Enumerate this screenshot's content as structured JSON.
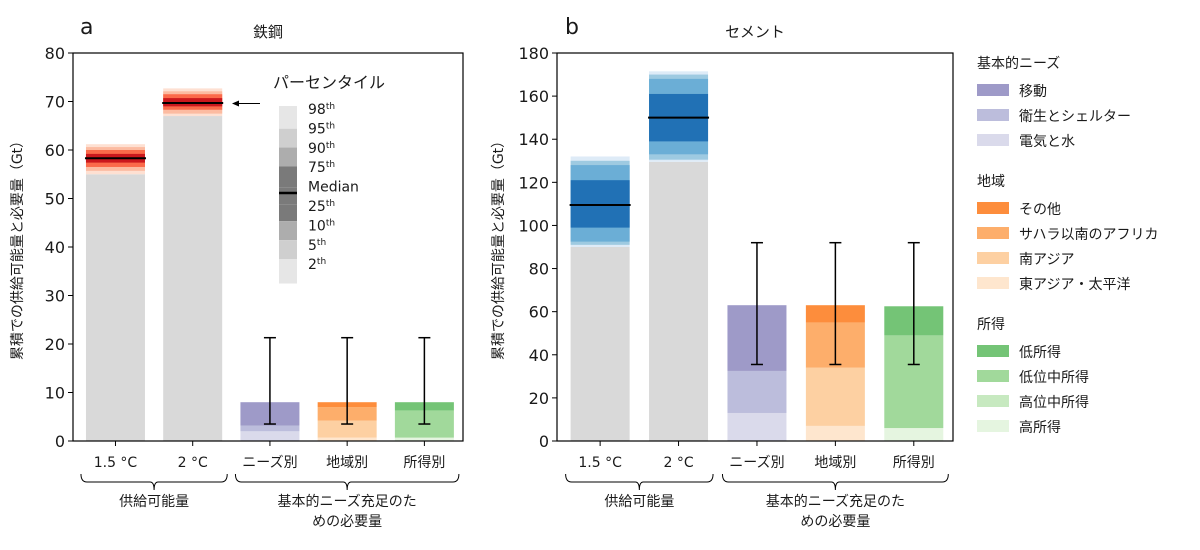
{
  "chart_data": [
    {
      "type": "bar",
      "panel_label": "a",
      "title": "鉄鋼",
      "ylabel": "累積での供給可能量と必要量（Gt）",
      "ylim": [
        0,
        80
      ],
      "yticks": [
        0,
        10,
        20,
        30,
        40,
        50,
        60,
        70,
        80
      ],
      "categories": [
        "1.5 °C",
        "2 °C",
        "ニーズ別",
        "地域別",
        "所得別"
      ],
      "group_labels": [
        {
          "label": "供給可能量",
          "categories": [
            "1.5 °C",
            "2 °C"
          ]
        },
        {
          "label": "基本的ニーズ充足のための必要量",
          "label_lines": [
            "基本的ニーズ充足のた",
            "めの必要量"
          ],
          "categories": [
            "ニーズ別",
            "地域別",
            "所得別"
          ]
        }
      ],
      "supply": [
        {
          "category": "1.5 °C",
          "percentiles": {
            "p2": 55.0,
            "p5": 55.7,
            "p10": 56.5,
            "p25": 57.4,
            "median": 58.3,
            "p75": 59.2,
            "p90": 60.0,
            "p95": 60.6,
            "p98": 61.2
          }
        },
        {
          "category": "2 °C",
          "percentiles": {
            "p2": 67.0,
            "p5": 67.5,
            "p10": 68.3,
            "p25": 69.0,
            "median": 69.7,
            "p75": 70.7,
            "p90": 71.5,
            "p95": 72.1,
            "p98": 72.7
          }
        }
      ],
      "demand": [
        {
          "category": "ニーズ別",
          "stack": [
            {
              "name": "電気と水",
              "value": 2.0
            },
            {
              "name": "衛生とシェルター",
              "value": 1.2
            },
            {
              "name": "移動",
              "value": 4.8
            }
          ],
          "error": [
            3.5,
            21.3
          ]
        },
        {
          "category": "地域別",
          "stack": [
            {
              "name": "東アジア・太平洋",
              "value": 0.7
            },
            {
              "name": "南アジア",
              "value": 3.5
            },
            {
              "name": "サハラ以南のアフリカ",
              "value": 2.8
            },
            {
              "name": "その他",
              "value": 1.0
            }
          ],
          "error": [
            3.5,
            21.3
          ]
        },
        {
          "category": "所得別",
          "stack": [
            {
              "name": "高所得",
              "value": 0.7
            },
            {
              "name": "高位中所得",
              "value": 0.0
            },
            {
              "name": "低位中所得",
              "value": 5.6
            },
            {
              "name": "低所得",
              "value": 1.7
            }
          ],
          "error": [
            3.5,
            21.3
          ]
        }
      ],
      "percentile_legend": {
        "title": "パーセンタイル",
        "entries": [
          {
            "label": "98",
            "sup": "th"
          },
          {
            "label": "95",
            "sup": "th"
          },
          {
            "label": "90",
            "sup": "th"
          },
          {
            "label": "75",
            "sup": "th"
          },
          {
            "label": "Median",
            "sup": ""
          },
          {
            "label": "25",
            "sup": "th"
          },
          {
            "label": "10",
            "sup": "th"
          },
          {
            "label": "5",
            "sup": "th"
          },
          {
            "label": "2",
            "sup": "th"
          }
        ]
      }
    },
    {
      "type": "bar",
      "panel_label": "b",
      "title": "セメント",
      "ylabel": "累積での供給可能量と必要量（Gt）",
      "ylim": [
        0,
        180
      ],
      "yticks": [
        0,
        20,
        40,
        60,
        80,
        100,
        120,
        140,
        160,
        180
      ],
      "categories": [
        "1.5 °C",
        "2 °C",
        "ニーズ別",
        "地域別",
        "所得別"
      ],
      "group_labels": [
        {
          "label": "供給可能量",
          "categories": [
            "1.5 °C",
            "2 °C"
          ]
        },
        {
          "label": "基本的ニーズ充足のための必要量",
          "label_lines": [
            "基本的ニーズ充足のた",
            "めの必要量"
          ],
          "categories": [
            "ニーズ別",
            "地域別",
            "所得別"
          ]
        }
      ],
      "supply": [
        {
          "category": "1.5 °C",
          "percentiles": {
            "p2": 90.0,
            "p5": 91.0,
            "p10": 92.5,
            "p25": 99.0,
            "median": 109.5,
            "p75": 121.0,
            "p90": 128.0,
            "p95": 130.0,
            "p98": 132.0
          }
        },
        {
          "category": "2 °C",
          "percentiles": {
            "p2": 129.5,
            "p5": 130.5,
            "p10": 133.0,
            "p25": 139.0,
            "median": 150.0,
            "p75": 161.0,
            "p90": 168.0,
            "p95": 170.0,
            "p98": 171.5
          }
        }
      ],
      "demand": [
        {
          "category": "ニーズ別",
          "stack": [
            {
              "name": "電気と水",
              "value": 13.0
            },
            {
              "name": "衛生とシェルター",
              "value": 19.5
            },
            {
              "name": "移動",
              "value": 30.5
            }
          ],
          "error": [
            35.5,
            92.0
          ]
        },
        {
          "category": "地域別",
          "stack": [
            {
              "name": "東アジア・太平洋",
              "value": 7.0
            },
            {
              "name": "南アジア",
              "value": 27.0
            },
            {
              "name": "サハラ以南のアフリカ",
              "value": 21.0
            },
            {
              "name": "その他",
              "value": 8.0
            }
          ],
          "error": [
            35.5,
            92.0
          ]
        },
        {
          "category": "所得別",
          "stack": [
            {
              "name": "高所得",
              "value": 6.0
            },
            {
              "name": "高位中所得",
              "value": 0.0
            },
            {
              "name": "低位中所得",
              "value": 43.0
            },
            {
              "name": "低所得",
              "value": 13.5
            }
          ],
          "error": [
            35.5,
            92.0
          ]
        }
      ]
    }
  ],
  "legend": {
    "groups": [
      {
        "title": "基本的ニーズ",
        "items": [
          {
            "label": "移動",
            "color": "#9e9ac8"
          },
          {
            "label": "衛生とシェルター",
            "color": "#bcbddc"
          },
          {
            "label": "電気と水",
            "color": "#dadaeb"
          }
        ]
      },
      {
        "title": "地域",
        "items": [
          {
            "label": "その他",
            "color": "#fd8d3c"
          },
          {
            "label": "サハラ以南のアフリカ",
            "color": "#fdae6b"
          },
          {
            "label": "南アジア",
            "color": "#fdd0a2"
          },
          {
            "label": "東アジア・太平洋",
            "color": "#fee6ce"
          }
        ]
      },
      {
        "title": "所得",
        "items": [
          {
            "label": "低所得",
            "color": "#74c476"
          },
          {
            "label": "低位中所得",
            "color": "#a1d99b"
          },
          {
            "label": "高位中所得",
            "color": "#c7e9c0"
          },
          {
            "label": "高所得",
            "color": "#e5f5e0"
          }
        ]
      }
    ]
  },
  "colors": {
    "supply_base": "#d9d9d9",
    "steel_bands": [
      "#fee0d2",
      "#fcbba1",
      "#fb6a4a",
      "#cb181d"
    ],
    "cement_bands": [
      "#deebf7",
      "#9ecae1",
      "#6baed6",
      "#2171b5"
    ],
    "percentile_legend_bands": [
      "#e6e6e6",
      "#cfcfcf",
      "#adadad",
      "#7a7a7a"
    ],
    "median_line": "#000000"
  }
}
